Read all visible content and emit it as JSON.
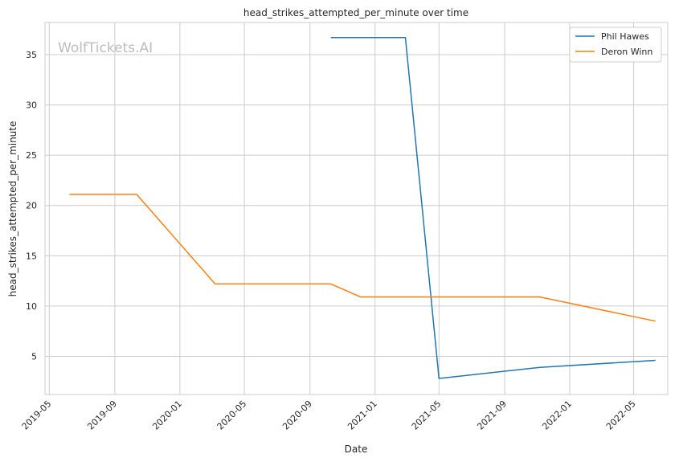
{
  "chart_data": {
    "type": "line",
    "title": "head_strikes_attempted_per_minute over time",
    "xlabel": "Date",
    "ylabel": "head_strikes_attempted_per_minute",
    "watermark": "WolfTickets.AI",
    "x_ticks": [
      "2019-05",
      "2019-09",
      "2020-01",
      "2020-05",
      "2020-09",
      "2021-01",
      "2021-05",
      "2021-09",
      "2022-01",
      "2022-05"
    ],
    "y_ticks": [
      5,
      10,
      15,
      20,
      25,
      30,
      35
    ],
    "xlim": [
      "2019-04-23",
      "2022-07-04"
    ],
    "ylim": [
      1.2,
      38.2
    ],
    "grid": true,
    "legend_position": "top-right",
    "series": [
      {
        "name": "Phil Hawes",
        "color": "#1f77b4",
        "points": [
          {
            "x": "2020-10-10",
            "y": 36.7
          },
          {
            "x": "2021-02-27",
            "y": 36.7
          },
          {
            "x": "2021-05-01",
            "y": 2.8
          },
          {
            "x": "2021-11-06",
            "y": 3.9
          },
          {
            "x": "2022-06-11",
            "y": 4.6
          }
        ]
      },
      {
        "name": "Deron Winn",
        "color": "#ff7f0e",
        "points": [
          {
            "x": "2019-06-08",
            "y": 21.1
          },
          {
            "x": "2019-10-12",
            "y": 21.1
          },
          {
            "x": "2020-03-07",
            "y": 12.2
          },
          {
            "x": "2020-10-10",
            "y": 12.2
          },
          {
            "x": "2020-12-05",
            "y": 10.9
          },
          {
            "x": "2021-11-06",
            "y": 10.9
          },
          {
            "x": "2022-06-11",
            "y": 8.5
          }
        ]
      }
    ]
  }
}
